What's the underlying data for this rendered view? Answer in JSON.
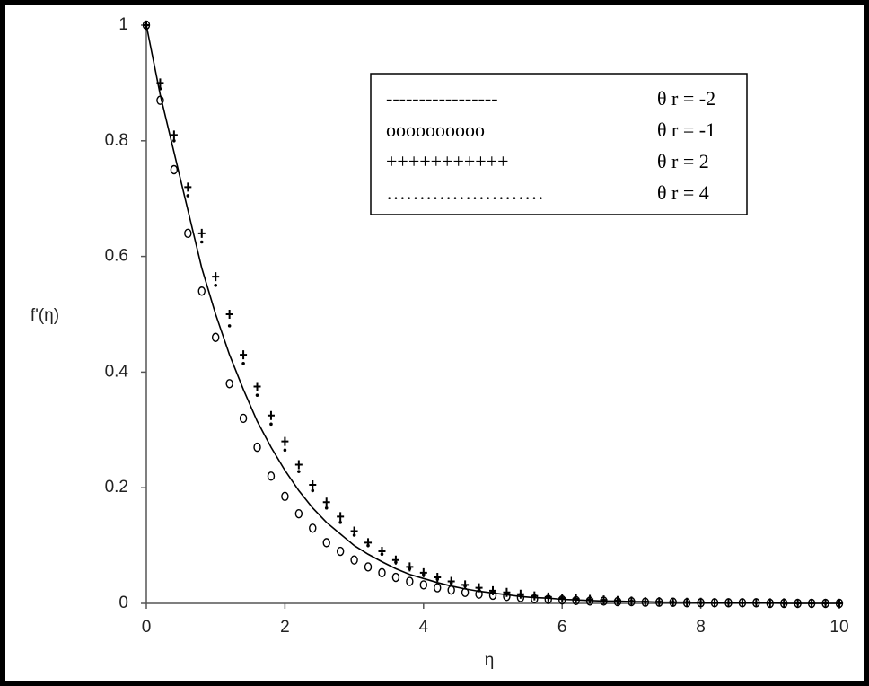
{
  "chart_data": {
    "type": "line-scatter",
    "x_label": "η",
    "y_label": "f'(η)",
    "x": [
      0,
      0.2,
      0.4,
      0.6,
      0.8,
      1,
      1.2,
      1.4,
      1.6,
      1.8,
      2,
      2.2,
      2.4,
      2.6,
      2.8,
      3,
      3.2,
      3.4,
      3.6,
      3.8,
      4,
      4.2,
      4.4,
      4.6,
      4.8,
      5,
      5.2,
      5.4,
      5.6,
      5.8,
      6,
      6.2,
      6.4,
      6.6,
      6.8,
      7,
      7.2,
      7.4,
      7.6,
      7.8,
      8,
      8.2,
      8.4,
      8.6,
      8.8,
      9,
      9.2,
      9.4,
      9.6,
      9.8,
      10
    ],
    "series": [
      {
        "name": "θ r = -2",
        "legend_symbol": "-----------------",
        "style": "line",
        "color": "#000000",
        "values": [
          1,
          0.88,
          0.78,
          0.68,
          0.58,
          0.5,
          0.43,
          0.37,
          0.315,
          0.27,
          0.23,
          0.195,
          0.165,
          0.14,
          0.12,
          0.1,
          0.085,
          0.072,
          0.06,
          0.05,
          0.043,
          0.036,
          0.03,
          0.025,
          0.021,
          0.018,
          0.015,
          0.012,
          0.01,
          0.009,
          0.007,
          0.006,
          0.005,
          0.004,
          0.004,
          0.003,
          0.003,
          0.002,
          0.002,
          0.002,
          0.001,
          0.001,
          0.001,
          0.001,
          0.001,
          0.001,
          0,
          0,
          0,
          0,
          0
        ]
      },
      {
        "name": "θ r = -1",
        "legend_symbol": "oooooooooo",
        "style": "circle",
        "color": "#000000",
        "values": [
          1,
          0.87,
          0.75,
          0.64,
          0.54,
          0.46,
          0.38,
          0.32,
          0.27,
          0.22,
          0.185,
          0.155,
          0.13,
          0.105,
          0.09,
          0.075,
          0.063,
          0.053,
          0.045,
          0.038,
          0.032,
          0.027,
          0.023,
          0.019,
          0.016,
          0.014,
          0.012,
          0.01,
          0.008,
          0.007,
          0.006,
          0.005,
          0.004,
          0.004,
          0.003,
          0.003,
          0.002,
          0.002,
          0.002,
          0.001,
          0.001,
          0.001,
          0.001,
          0.001,
          0.001,
          0,
          0,
          0,
          0,
          0,
          0
        ]
      },
      {
        "name": "θ r = 2",
        "legend_symbol": "+++++++++++",
        "style": "plus",
        "color": "#000000",
        "values": [
          1,
          0.9,
          0.81,
          0.72,
          0.64,
          0.565,
          0.5,
          0.43,
          0.375,
          0.325,
          0.28,
          0.24,
          0.205,
          0.175,
          0.15,
          0.125,
          0.105,
          0.09,
          0.075,
          0.063,
          0.053,
          0.045,
          0.038,
          0.032,
          0.027,
          0.022,
          0.019,
          0.016,
          0.013,
          0.011,
          0.009,
          0.008,
          0.007,
          0.006,
          0.005,
          0.004,
          0.003,
          0.003,
          0.002,
          0.002,
          0.002,
          0.001,
          0.001,
          0.001,
          0.001,
          0.001,
          0.001,
          0,
          0,
          0,
          0
        ]
      },
      {
        "name": "θ r = 4",
        "legend_symbol": "……………………",
        "style": "dot",
        "color": "#000000",
        "values": [
          1,
          0.89,
          0.8,
          0.705,
          0.625,
          0.55,
          0.48,
          0.415,
          0.36,
          0.31,
          0.265,
          0.228,
          0.195,
          0.165,
          0.14,
          0.118,
          0.1,
          0.085,
          0.071,
          0.06,
          0.05,
          0.042,
          0.035,
          0.03,
          0.025,
          0.021,
          0.018,
          0.015,
          0.012,
          0.01,
          0.009,
          0.007,
          0.006,
          0.005,
          0.004,
          0.004,
          0.003,
          0.002,
          0.002,
          0.002,
          0.001,
          0.001,
          0.001,
          0.001,
          0.001,
          0.001,
          0,
          0,
          0,
          0,
          0
        ]
      }
    ],
    "xlim": [
      0,
      10
    ],
    "xticks": [
      0,
      2,
      4,
      6,
      8,
      10
    ],
    "ylim": [
      0,
      1
    ],
    "yticks": [
      0,
      0.2,
      0.4,
      0.6,
      0.8,
      1
    ],
    "legend": "top-right"
  }
}
